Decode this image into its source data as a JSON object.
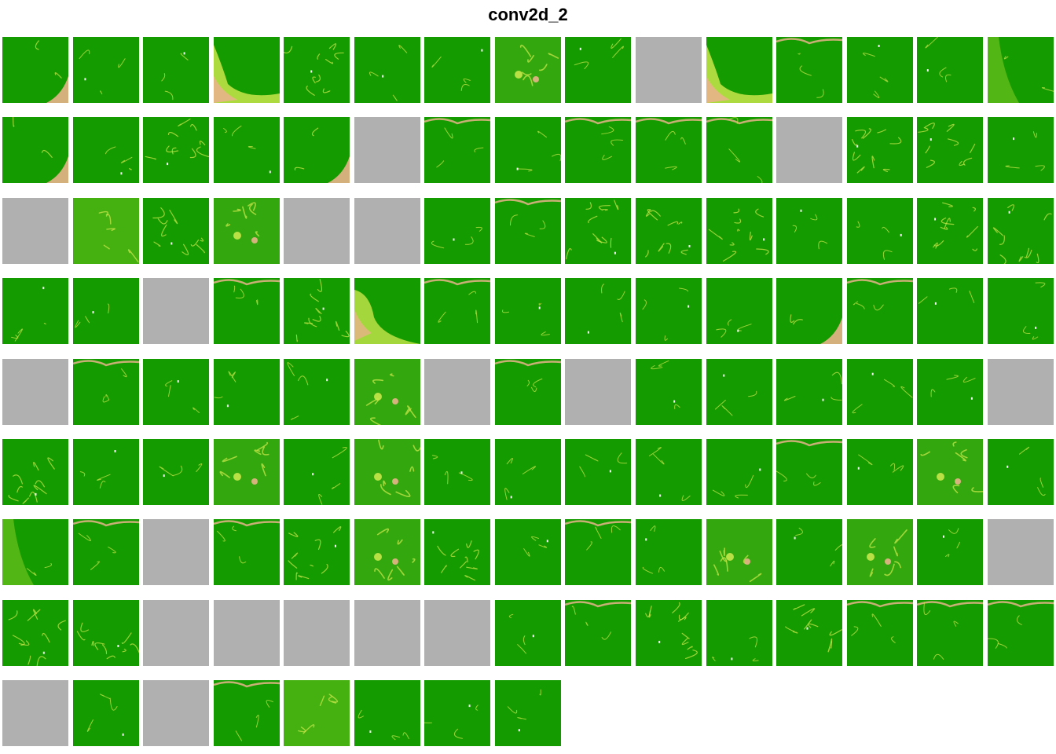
{
  "title": "conv2d_2",
  "colors": {
    "background": "#ffffff",
    "active": "#149b00",
    "inactive": "#b0b0b0",
    "edge_light": "#c8e64a",
    "edge_hot": "#e8b38a",
    "edge_peak": "#f4f4f4"
  },
  "feature_maps": {
    "columns": 15,
    "count": 128,
    "inactive_indices": [
      9,
      20,
      26,
      30,
      34,
      35,
      47,
      60,
      66,
      68,
      74,
      92,
      104,
      107,
      108,
      109,
      110,
      111,
      120,
      122
    ],
    "patterns": {
      "0": "corner-br",
      "3": "blob-bl",
      "4": "texture",
      "7": "face",
      "10": "blob-bl",
      "11": "edge-top",
      "14": "haze-left",
      "15": "corner-br",
      "17": "texture",
      "19": "corner-br",
      "21": "edge-top",
      "23": "edge-top",
      "24": "edge-top",
      "25": "edge-top",
      "27": "texture",
      "28": "texture",
      "31": "haze",
      "32": "texture",
      "33": "face",
      "37": "edge-top",
      "38": "texture",
      "39": "texture",
      "40": "texture",
      "43": "texture",
      "44": "texture",
      "48": "edge-top",
      "49": "texture",
      "50": "blob-tl",
      "51": "edge-top",
      "56": "corner-br",
      "57": "edge-top",
      "61": "edge-top",
      "65": "face",
      "67": "edge-top",
      "75": "texture",
      "78": "face",
      "80": "face",
      "86": "edge-top",
      "88": "face",
      "90": "haze-left",
      "91": "edge-top",
      "93": "edge-top",
      "94": "texture",
      "95": "face",
      "96": "texture",
      "98": "edge-top",
      "100": "face",
      "102": "face",
      "105": "texture",
      "106": "texture",
      "108": "edge-top",
      "113": "edge-top",
      "114": "texture",
      "116": "texture",
      "117": "edge-top",
      "118": "edge-top",
      "119": "edge-top",
      "123": "edge-top",
      "124": "haze"
    }
  }
}
